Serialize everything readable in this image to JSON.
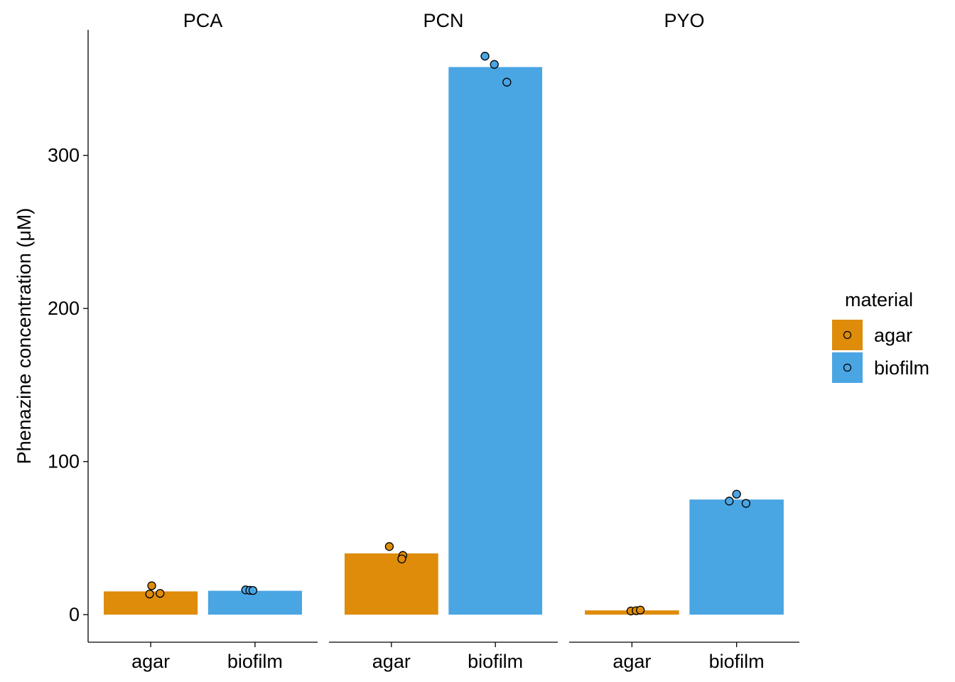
{
  "chart_data": {
    "type": "bar",
    "title": "",
    "xlabel": "",
    "ylabel": "Phenazine concentration (μM)",
    "ylim": [
      -18,
      382
    ],
    "y_ticks": [
      0,
      100,
      200,
      300
    ],
    "grid": false,
    "categories": [
      "agar",
      "biofilm"
    ],
    "facets": [
      {
        "name": "PCA",
        "bars": [
          {
            "category": "agar",
            "material": "agar",
            "value": 15.2
          },
          {
            "category": "biofilm",
            "material": "biofilm",
            "value": 15.6
          }
        ],
        "points": [
          {
            "category": "agar",
            "material": "agar",
            "offset": 0.01,
            "value": 18.9
          },
          {
            "category": "agar",
            "material": "agar",
            "offset": -0.01,
            "value": 13.5
          },
          {
            "category": "agar",
            "material": "agar",
            "offset": 0.09,
            "value": 13.9
          },
          {
            "category": "biofilm",
            "material": "biofilm",
            "offset": -0.09,
            "value": 16.2
          },
          {
            "category": "biofilm",
            "material": "biofilm",
            "offset": -0.05,
            "value": 15.9
          },
          {
            "category": "biofilm",
            "material": "biofilm",
            "offset": -0.02,
            "value": 15.8
          }
        ]
      },
      {
        "name": "PCN",
        "bars": [
          {
            "category": "agar",
            "material": "agar",
            "value": 40.0
          },
          {
            "category": "biofilm",
            "material": "biofilm",
            "value": 357.7
          }
        ],
        "points": [
          {
            "category": "agar",
            "material": "agar",
            "offset": -0.02,
            "value": 44.5
          },
          {
            "category": "agar",
            "material": "agar",
            "offset": 0.11,
            "value": 38.7
          },
          {
            "category": "agar",
            "material": "agar",
            "offset": 0.1,
            "value": 36.4
          },
          {
            "category": "biofilm",
            "material": "biofilm",
            "offset": -0.1,
            "value": 364.8
          },
          {
            "category": "biofilm",
            "material": "biofilm",
            "offset": -0.01,
            "value": 359.4
          },
          {
            "category": "biofilm",
            "material": "biofilm",
            "offset": 0.11,
            "value": 347.8
          }
        ]
      },
      {
        "name": "PYO",
        "bars": [
          {
            "category": "agar",
            "material": "agar",
            "value": 2.8
          },
          {
            "category": "biofilm",
            "material": "biofilm",
            "value": 75.2
          }
        ],
        "points": [
          {
            "category": "agar",
            "material": "agar",
            "offset": -0.01,
            "value": 2.4
          },
          {
            "category": "agar",
            "material": "agar",
            "offset": 0.04,
            "value": 2.6
          },
          {
            "category": "agar",
            "material": "agar",
            "offset": 0.08,
            "value": 3.0
          },
          {
            "category": "biofilm",
            "material": "biofilm",
            "offset": -0.07,
            "value": 74.2
          },
          {
            "category": "biofilm",
            "material": "biofilm",
            "offset": 0.0,
            "value": 78.7
          },
          {
            "category": "biofilm",
            "material": "biofilm",
            "offset": 0.09,
            "value": 72.7
          }
        ]
      }
    ],
    "legend": {
      "title": "material",
      "placement": "right",
      "items": [
        {
          "label": "agar",
          "color": "#DE8C0A"
        },
        {
          "label": "biofilm",
          "color": "#4AA5E3"
        }
      ]
    },
    "colors": {
      "agar": "#DE8C0A",
      "biofilm": "#4AA5E3",
      "point_stroke": "#000000",
      "axis": "#000000"
    }
  }
}
